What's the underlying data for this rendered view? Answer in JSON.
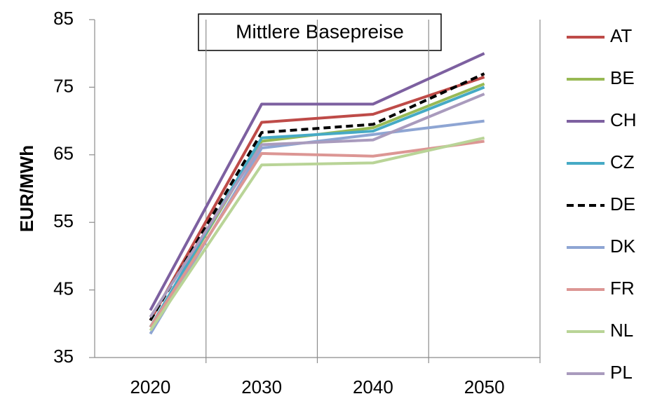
{
  "chart_data": {
    "type": "line",
    "title": "Mittlere Basepreise",
    "y_label": "EUR/MWh",
    "categories": [
      "2020",
      "2030",
      "2040",
      "2050"
    ],
    "ylim": [
      35,
      85
    ],
    "yticks": [
      35,
      45,
      55,
      65,
      75,
      85
    ],
    "grid": "vertical",
    "legend": "right",
    "series": [
      {
        "name": "AT",
        "color": "#be4b48",
        "values": [
          40.5,
          69.8,
          71,
          76.5
        ]
      },
      {
        "name": "BE",
        "color": "#98b954",
        "values": [
          39.5,
          67,
          69,
          75.5
        ]
      },
      {
        "name": "CH",
        "color": "#7d60a0",
        "values": [
          42,
          72.5,
          72.5,
          80
        ]
      },
      {
        "name": "CZ",
        "color": "#46aac5",
        "values": [
          39.5,
          67.5,
          68.5,
          75
        ]
      },
      {
        "name": "DE",
        "color": "#000000",
        "dash": true,
        "values": [
          40.5,
          68.3,
          69.5,
          77
        ]
      },
      {
        "name": "DK",
        "color": "#8ea5d3",
        "values": [
          38.5,
          66,
          68,
          70
        ]
      },
      {
        "name": "FR",
        "color": "#dc9694",
        "values": [
          39.5,
          65.2,
          64.8,
          67
        ]
      },
      {
        "name": "NL",
        "color": "#b9d497",
        "values": [
          39,
          63.5,
          63.8,
          67.5
        ]
      },
      {
        "name": "PL",
        "color": "#a99bbd",
        "values": [
          41,
          66.5,
          67.2,
          74
        ]
      }
    ]
  }
}
